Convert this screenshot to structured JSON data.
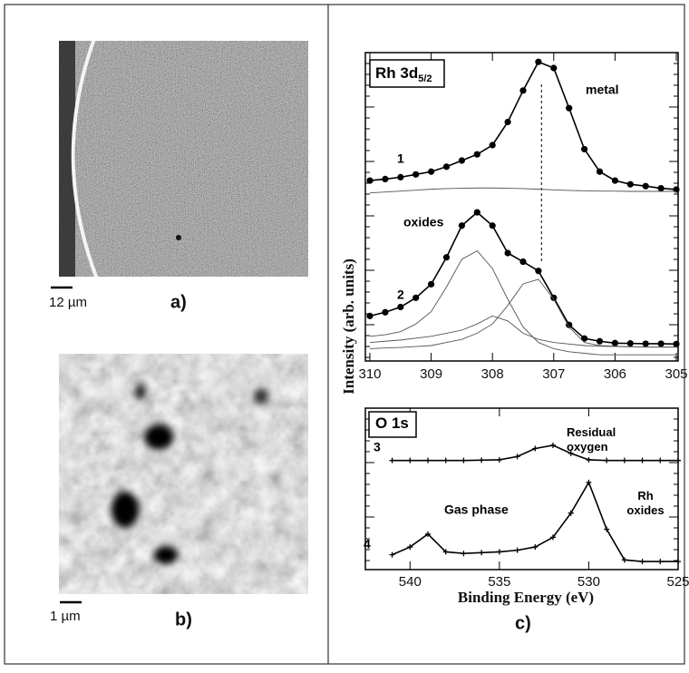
{
  "panels": {
    "a": {
      "scale_bar": "12 µm",
      "label": "a)"
    },
    "b": {
      "scale_bar": "1 µm",
      "label": "b)"
    },
    "c": {
      "label": "c)",
      "y_label": "Intensity (arb. units)",
      "x_label": "Binding Energy (eV)"
    }
  },
  "chart_data": [
    {
      "type": "line",
      "title": "Rh 3d",
      "title_sub": "5/2",
      "x": [
        310,
        309.75,
        309.5,
        309.25,
        309,
        308.75,
        308.5,
        308.25,
        308,
        307.75,
        307.5,
        307.25,
        307,
        306.75,
        306.5,
        306.25,
        306,
        305.75,
        305.5,
        305.25,
        305
      ],
      "xlim": [
        310,
        305
      ],
      "xticks": [
        310,
        309,
        308,
        307,
        306,
        305
      ],
      "ylim": [
        0,
        100
      ],
      "vline": 307.2,
      "annotations": [
        "metal",
        "oxides"
      ],
      "series": [
        {
          "name": "1",
          "color": "#000000",
          "marker": "circle",
          "values": [
            58.5,
            59,
            59.6,
            60.5,
            61.4,
            63,
            65,
            67,
            70,
            77.5,
            87.7,
            97,
            95,
            82,
            68.7,
            61.4,
            58.5,
            57.3,
            56.7,
            56,
            55.6
          ]
        },
        {
          "color": "#555555",
          "values": [
            54.5,
            54.8,
            55.1,
            55.4,
            55.7,
            55.9,
            56,
            56.1,
            56.1,
            56,
            55.9,
            55.7,
            55.5,
            55.3,
            55.2,
            55.1,
            55.1,
            55,
            55,
            55,
            55
          ]
        },
        {
          "name": "2",
          "color": "#000000",
          "marker": "circle",
          "values": [
            14.6,
            15.8,
            17.5,
            20.5,
            24.9,
            33.6,
            43.9,
            48.2,
            43.9,
            35,
            32.2,
            29.2,
            20.5,
            11.7,
            7.3,
            6.4,
            5.8,
            5.7,
            5.6,
            5.6,
            5.5
          ]
        },
        {
          "color": "#555555",
          "values": [
            8,
            8.5,
            9.5,
            12,
            16,
            24,
            33,
            35.7,
            30,
            20,
            11,
            6,
            4,
            3,
            2.5,
            2,
            2,
            2,
            2,
            2,
            2
          ]
        },
        {
          "color": "#555555",
          "values": [
            4,
            4.2,
            4.4,
            4.7,
            5,
            6,
            7,
            9,
            12,
            18,
            25,
            26.5,
            20,
            11,
            6,
            5,
            4.8,
            4.6,
            4.5,
            4.5,
            4.5
          ]
        },
        {
          "color": "#555555",
          "values": [
            6,
            6.4,
            6.8,
            7.4,
            8,
            9,
            10,
            12,
            14.6,
            13,
            9,
            7,
            6,
            5.5,
            5,
            4.8,
            4.7,
            4.6,
            4.5,
            4.5,
            4.5
          ]
        }
      ]
    },
    {
      "type": "line",
      "title": "O 1s",
      "x": [
        541,
        540,
        539,
        538,
        537,
        536,
        535,
        534,
        533,
        532,
        531,
        530,
        529,
        528,
        527,
        526,
        525
      ],
      "xlim": [
        542.5,
        525
      ],
      "xticks": [
        540,
        535,
        530,
        525
      ],
      "ylim": [
        0,
        100
      ],
      "annotations": [
        "Residual\noxygen",
        "Rh\noxides",
        "Gas phase"
      ],
      "series": [
        {
          "name": "3",
          "color": "#000000",
          "marker": "plus",
          "values": [
            67.6,
            67.6,
            67.6,
            67.6,
            67.6,
            67.8,
            68,
            70,
            75,
            77,
            72,
            68,
            67.6,
            67.6,
            67.6,
            67.6,
            67.6
          ]
        },
        {
          "name": "4",
          "color": "#000000",
          "marker": "plus",
          "values": [
            9.2,
            14,
            22,
            11,
            10,
            10.5,
            11,
            12,
            14,
            20,
            35,
            54,
            25,
            6,
            5,
            5,
            5
          ]
        }
      ]
    }
  ]
}
